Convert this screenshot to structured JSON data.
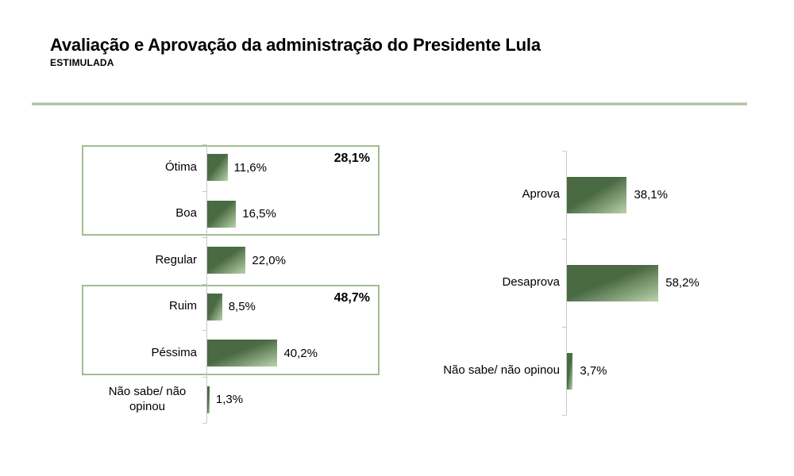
{
  "header": {
    "title": "Avaliação e Aprovação da administração do Presidente Lula",
    "subtitle": "ESTIMULADA"
  },
  "colors": {
    "bar_dark": "#4A6A44",
    "bar_light": "#B2CCA3",
    "box_border": "#A3BC91",
    "axis": "#C6CAC6",
    "rule_light": "#CBDABD",
    "rule_dark": "#8F998A"
  },
  "chart_data": [
    {
      "type": "bar",
      "orientation": "horizontal",
      "unit": "%",
      "categories": [
        "Ótima",
        "Boa",
        "Regular",
        "Ruim",
        "Péssima",
        "Não sabe/ não opinou"
      ],
      "values": [
        11.6,
        16.5,
        22.0,
        8.5,
        40.2,
        1.3
      ],
      "value_labels": [
        "11,6%",
        "16,5%",
        "22,0%",
        "8,5%",
        "40,2%",
        "1,3%"
      ],
      "groups": [
        {
          "label": "28,1%",
          "from": 0,
          "to": 1
        },
        {
          "label": "48,7%",
          "from": 3,
          "to": 4
        }
      ],
      "grid": false,
      "legend": false
    },
    {
      "type": "bar",
      "orientation": "horizontal",
      "unit": "%",
      "categories": [
        "Aprova",
        "Desaprova",
        "Não sabe/ não opinou"
      ],
      "values": [
        38.1,
        58.2,
        3.7
      ],
      "value_labels": [
        "38,1%",
        "58,2%",
        "3,7%"
      ],
      "groups": [],
      "grid": false,
      "legend": false
    }
  ]
}
